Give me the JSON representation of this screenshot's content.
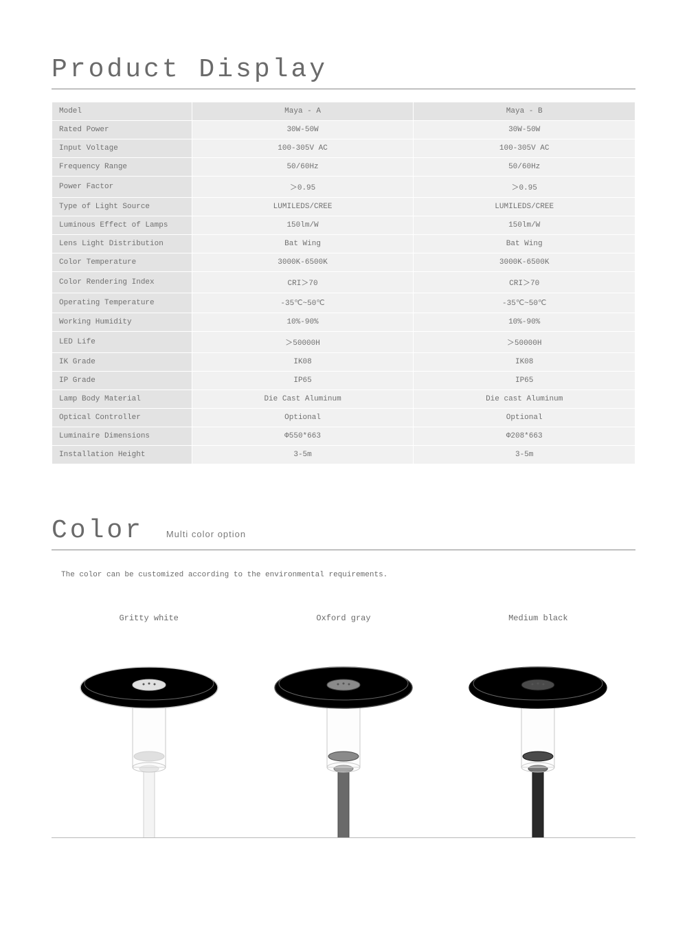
{
  "product_display": {
    "title": "Product Display",
    "spec_rows": [
      {
        "label": "Model",
        "a": "Maya - A",
        "b": "Maya - B"
      },
      {
        "label": "Rated Power",
        "a": "30W-50W",
        "b": "30W-50W"
      },
      {
        "label": "Input Voltage",
        "a": "100-305V AC",
        "b": "100-305V AC"
      },
      {
        "label": "Frequency Range",
        "a": "50/60Hz",
        "b": "50/60Hz"
      },
      {
        "label": "Power Factor",
        "a": "＞0.95",
        "b": "＞0.95"
      },
      {
        "label": "Type of Light Source",
        "a": "LUMILEDS/CREE",
        "b": "LUMILEDS/CREE"
      },
      {
        "label": "Luminous Effect of Lamps",
        "a": "150lm/W",
        "b": "150lm/W"
      },
      {
        "label": "Lens Light Distribution",
        "a": "Bat Wing",
        "b": "Bat Wing"
      },
      {
        "label": "Color Temperature",
        "a": "3000K-6500K",
        "b": "3000K-6500K"
      },
      {
        "label": "Color Rendering Index",
        "a": "CRI＞70",
        "b": "CRI＞70"
      },
      {
        "label": "Operating Temperature",
        "a": "-35℃~50℃",
        "b": "-35℃~50℃"
      },
      {
        "label": "Working Humidity",
        "a": "10%-90%",
        "b": "10%-90%"
      },
      {
        "label": "LED Life",
        "a": "＞50000H",
        "b": "＞50000H"
      },
      {
        "label": "IK Grade",
        "a": "IK08",
        "b": "IK08"
      },
      {
        "label": "IP Grade",
        "a": "IP65",
        "b": "IP65"
      },
      {
        "label": "Lamp Body Material",
        "a": "Die Cast Aluminum",
        "b": "Die cast Aluminum"
      },
      {
        "label": "Optical Controller",
        "a": "Optional",
        "b": "Optional"
      },
      {
        "label": "Luminaire Dimensions",
        "a": "Φ550*663",
        "b": "Φ208*663"
      },
      {
        "label": "Installation Height",
        "a": "3-5m",
        "b": "3-5m"
      }
    ]
  },
  "color_section": {
    "title": "Color",
    "subtitle": "Multi color option",
    "note": "The color can be customized according to the environmental requirements.",
    "options": [
      {
        "label": "Gritty white",
        "top_fill": "#eeeeee",
        "top_stroke": "#c4c4c4",
        "pole_fill": "#f4f4f4",
        "pole_stroke": "#d0d0d0",
        "body_fill": "#e0e0e0"
      },
      {
        "label": "Oxford gray",
        "top_fill": "#767676",
        "top_stroke": "#4c4c4c",
        "pole_fill": "#6a6a6a",
        "pole_stroke": "#4c4c4c",
        "body_fill": "#8a8a8a"
      },
      {
        "label": "Medium black",
        "top_fill": "#303030",
        "top_stroke": "#151515",
        "pole_fill": "#2a2a2a",
        "pole_stroke": "#151515",
        "body_fill": "#4a4a4a"
      }
    ]
  },
  "styling": {
    "page_bg": "#ffffff",
    "title_color": "#6a6a6a",
    "title_fontsize_pt": 28,
    "table_header_bg": "#e3e3e3",
    "table_cell_bg": "#f1f1f1",
    "table_border_color": "#ffffff",
    "table_text_color": "#707070",
    "table_fontsize_pt": 8,
    "hr_color": "#888888",
    "color_row_border": "#b8b8b8",
    "font_family": "Courier New, monospace"
  }
}
